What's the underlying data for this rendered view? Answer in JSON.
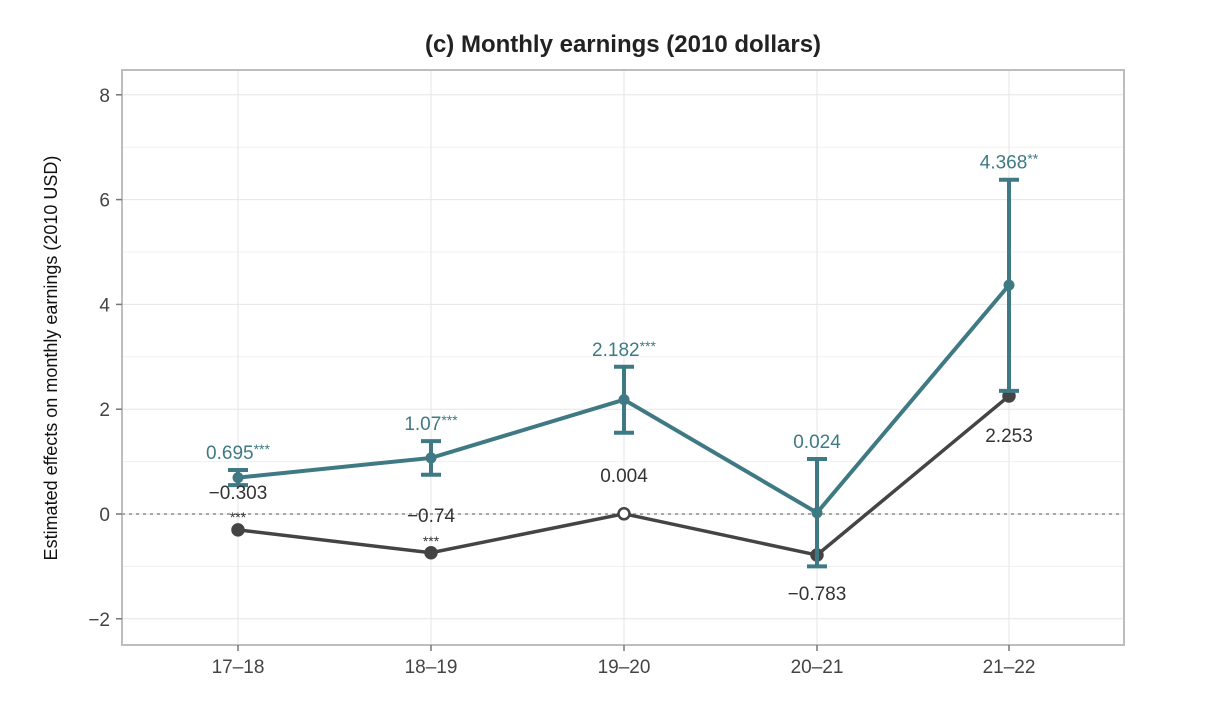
{
  "chart_data": {
    "type": "line",
    "title": "(c) Monthly earnings (2010 dollars)",
    "xlabel": "",
    "ylabel": "Estimated effects on monthly earnings (2010 USD)",
    "categories": [
      "17–18",
      "18–19",
      "19–20",
      "20–21",
      "21–22"
    ],
    "ylim": [
      -2.5,
      8.5
    ],
    "yticks": [
      -2,
      0,
      2,
      4,
      6,
      8
    ],
    "ytick_labels": [
      "−2",
      "0",
      "2",
      "4",
      "6",
      "8"
    ],
    "reference_line": 0,
    "grid": true,
    "series": [
      {
        "color": "#3f7a84",
        "values": [
          0.695,
          1.07,
          2.182,
          0.024,
          4.368
        ],
        "ci_low": [
          0.55,
          0.75,
          1.55,
          -1.0,
          2.35
        ],
        "ci_high": [
          0.84,
          1.39,
          2.81,
          1.05,
          6.38
        ],
        "labels": [
          "0.695",
          "1.07",
          "2.182",
          "0.024",
          "4.368"
        ],
        "stars": [
          "***",
          "***",
          "***",
          "",
          "**"
        ]
      },
      {
        "color": "#444444",
        "values": [
          -0.303,
          -0.74,
          0.004,
          -0.783,
          2.253
        ],
        "labels": [
          "−0.303",
          "−0.74",
          "0.004",
          "−0.783",
          "2.253"
        ],
        "stars": [
          "***",
          "***",
          "",
          "",
          ""
        ]
      }
    ]
  }
}
